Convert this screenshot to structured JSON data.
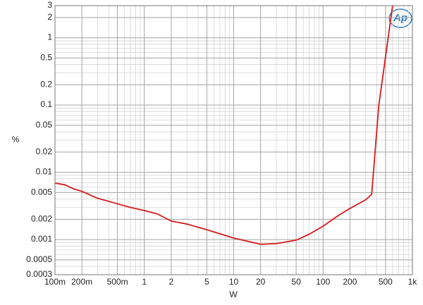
{
  "chart_data": {
    "type": "line",
    "x_label": "W",
    "y_label": "%",
    "logo": "Ap",
    "xscale": "log",
    "yscale": "log",
    "grid": true,
    "minor_grid": true,
    "xlim": [
      0.1,
      1000
    ],
    "ylim": [
      0.0003,
      3
    ],
    "xticks": [
      {
        "value": 0.1,
        "label": "100m"
      },
      {
        "value": 0.2,
        "label": "200m"
      },
      {
        "value": 0.5,
        "label": "500m"
      },
      1,
      2,
      5,
      10,
      20,
      50,
      100,
      200,
      500,
      {
        "value": 1000,
        "label": "1k"
      }
    ],
    "yticks": [
      0.0003,
      0.0005,
      0.001,
      0.002,
      0.005,
      0.01,
      0.02,
      0.05,
      0.1,
      0.2,
      0.5,
      1,
      2,
      3
    ],
    "series": [
      {
        "color": "#d7191c",
        "x": [
          0.1,
          0.13,
          0.16,
          0.2,
          0.3,
          0.5,
          0.7,
          1,
          1.4,
          2,
          3,
          5,
          10,
          20,
          30,
          50,
          70,
          100,
          150,
          200,
          300,
          350,
          420,
          600
        ],
        "values": [
          0.0069,
          0.0065,
          0.0057,
          0.0052,
          0.0041,
          0.0034,
          0.003,
          0.0027,
          0.0024,
          0.00188,
          0.0017,
          0.0014,
          0.00105,
          0.00085,
          0.00087,
          0.00098,
          0.0012,
          0.00158,
          0.0023,
          0.0029,
          0.0039,
          0.0047,
          0.098,
          3
        ]
      }
    ]
  }
}
